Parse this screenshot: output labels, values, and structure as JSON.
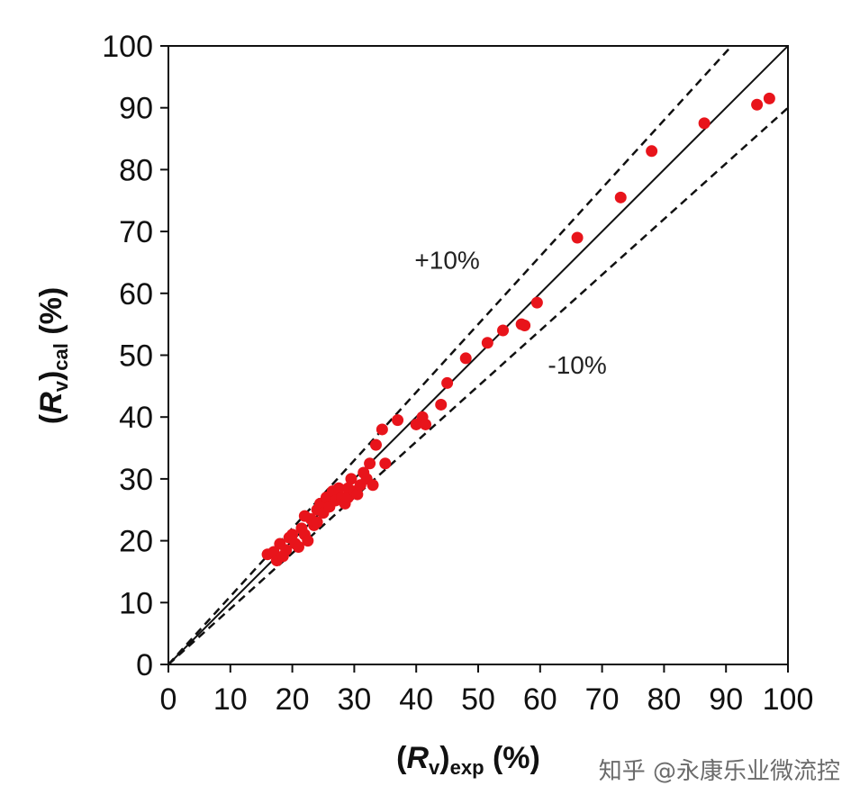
{
  "chart_data": {
    "type": "scatter",
    "title": "",
    "xlabel": {
      "open": "(",
      "var": "R",
      "sub1": "v",
      "close": ")",
      "sub2": "exp",
      "unit": " (%)"
    },
    "ylabel": {
      "open": "(",
      "var": "R",
      "sub1": "v",
      "close": ")",
      "sub2": "cal",
      "unit": " (%)"
    },
    "xlim": [
      0,
      100
    ],
    "ylim": [
      0,
      100
    ],
    "xticks": [
      "0",
      "10",
      "20",
      "30",
      "40",
      "50",
      "60",
      "70",
      "80",
      "90",
      "100"
    ],
    "yticks": [
      "0",
      "10",
      "20",
      "30",
      "40",
      "50",
      "60",
      "70",
      "80",
      "90",
      "100"
    ],
    "grid": false,
    "reference_lines": [
      {
        "kind": "parity",
        "slope": 1.0,
        "style": "solid"
      },
      {
        "kind": "upper",
        "slope": 1.1,
        "style": "dashed",
        "label": "+10%",
        "label_at": [
          45,
          64
        ]
      },
      {
        "kind": "lower",
        "slope": 0.9,
        "style": "dashed",
        "label": "-10%",
        "label_at": [
          66,
          47
        ]
      }
    ],
    "marker_color": "#e8141b",
    "points": [
      [
        16,
        17.8
      ],
      [
        17,
        18.2
      ],
      [
        17.5,
        16.8
      ],
      [
        18,
        19.5
      ],
      [
        18.5,
        17.5
      ],
      [
        19,
        18.5
      ],
      [
        19.5,
        20.5
      ],
      [
        20,
        21
      ],
      [
        20.5,
        19.5
      ],
      [
        21,
        19
      ],
      [
        21.5,
        22
      ],
      [
        22,
        24
      ],
      [
        22,
        21
      ],
      [
        22.5,
        20
      ],
      [
        23,
        23.5
      ],
      [
        23.5,
        22.5
      ],
      [
        24,
        25
      ],
      [
        24,
        23
      ],
      [
        24.5,
        26
      ],
      [
        25,
        24.5
      ],
      [
        25.5,
        27
      ],
      [
        26,
        25.5
      ],
      [
        26.5,
        28
      ],
      [
        27,
        26.5
      ],
      [
        27.5,
        28.5
      ],
      [
        28,
        27
      ],
      [
        28.5,
        26
      ],
      [
        29,
        28.5
      ],
      [
        29,
        27
      ],
      [
        29.5,
        30
      ],
      [
        30,
        28
      ],
      [
        30.5,
        27.5
      ],
      [
        31,
        29
      ],
      [
        31.5,
        31
      ],
      [
        32,
        30
      ],
      [
        32.5,
        32.5
      ],
      [
        33,
        29
      ],
      [
        33.5,
        35.5
      ],
      [
        34.5,
        38
      ],
      [
        35,
        32.5
      ],
      [
        37,
        39.5
      ],
      [
        40,
        38.8
      ],
      [
        41,
        40
      ],
      [
        41.5,
        38.8
      ],
      [
        44,
        42
      ],
      [
        45,
        45.5
      ],
      [
        48,
        49.5
      ],
      [
        51.5,
        52
      ],
      [
        54,
        54
      ],
      [
        57,
        55
      ],
      [
        57.5,
        54.8
      ],
      [
        59.5,
        58.5
      ],
      [
        66,
        69
      ],
      [
        73,
        75.5
      ],
      [
        78,
        83
      ],
      [
        86.5,
        87.5
      ],
      [
        95,
        90.5
      ],
      [
        97,
        91.5
      ]
    ]
  },
  "watermark": "知乎 @永康乐业微流控"
}
